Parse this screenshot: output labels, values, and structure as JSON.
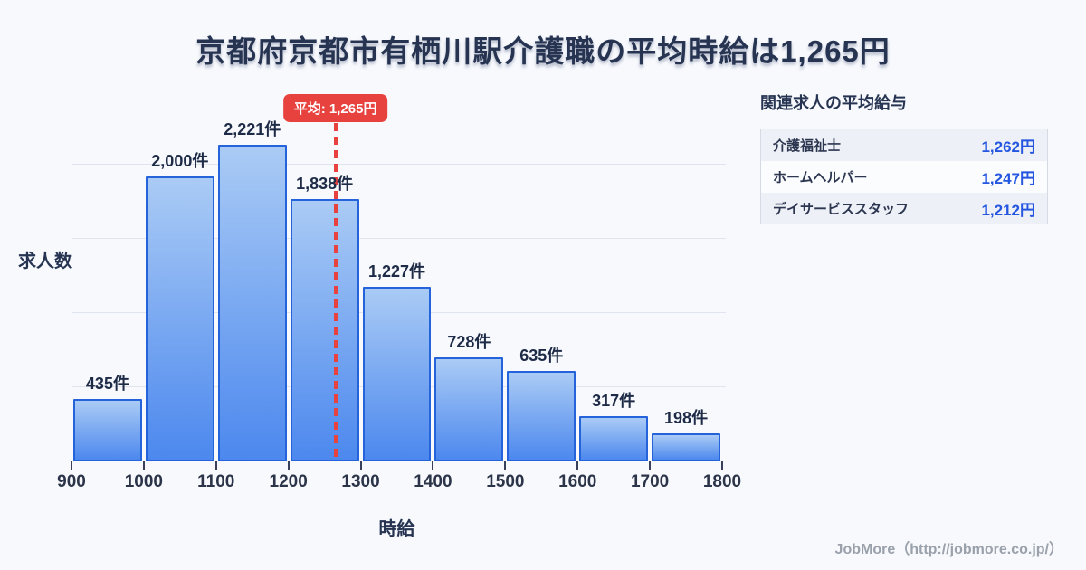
{
  "title": "京都府京都市有栖川駅介護職の平均時給は1,265円",
  "chart_data": {
    "type": "bar",
    "title": "京都府京都市有栖川駅介護職の平均時給は1,265円",
    "xlabel": "時給",
    "ylabel": "求人数",
    "bin_edges": [
      900,
      1000,
      1100,
      1200,
      1300,
      1400,
      1500,
      1600,
      1700,
      1800
    ],
    "x_tick_labels": [
      "900",
      "1000",
      "1100",
      "1200",
      "1300",
      "1400",
      "1500",
      "1600",
      "1700",
      "1800"
    ],
    "values": [
      435,
      2000,
      2221,
      1838,
      1227,
      728,
      635,
      317,
      198
    ],
    "value_labels": [
      "435件",
      "2,000件",
      "2,221件",
      "1,838件",
      "1,227件",
      "728件",
      "635件",
      "317件",
      "198件"
    ],
    "average": 1265,
    "average_label": "平均: 1,265円",
    "ylim": [
      0,
      2600
    ],
    "grid": true,
    "grid_interval": 500,
    "legend": "none"
  },
  "panel": {
    "title": "関連求人の平均給与",
    "rows": [
      {
        "name": "介護福祉士",
        "value": "1,262円"
      },
      {
        "name": "ホームヘルパー",
        "value": "1,247円"
      },
      {
        "name": "デイサービススタッフ",
        "value": "1,212円"
      }
    ]
  },
  "footer": {
    "credit": "JobMore（http://jobmore.co.jp/）"
  },
  "colors": {
    "background": "#f7f9fd",
    "navy": "#263452",
    "bar_fill_top": "#aacbf5",
    "bar_fill_bottom": "#4c88ee",
    "bar_border": "#2563db",
    "average_red": "#e8423f",
    "value_blue": "#2456e0",
    "gridline": "#dfe4ee"
  }
}
